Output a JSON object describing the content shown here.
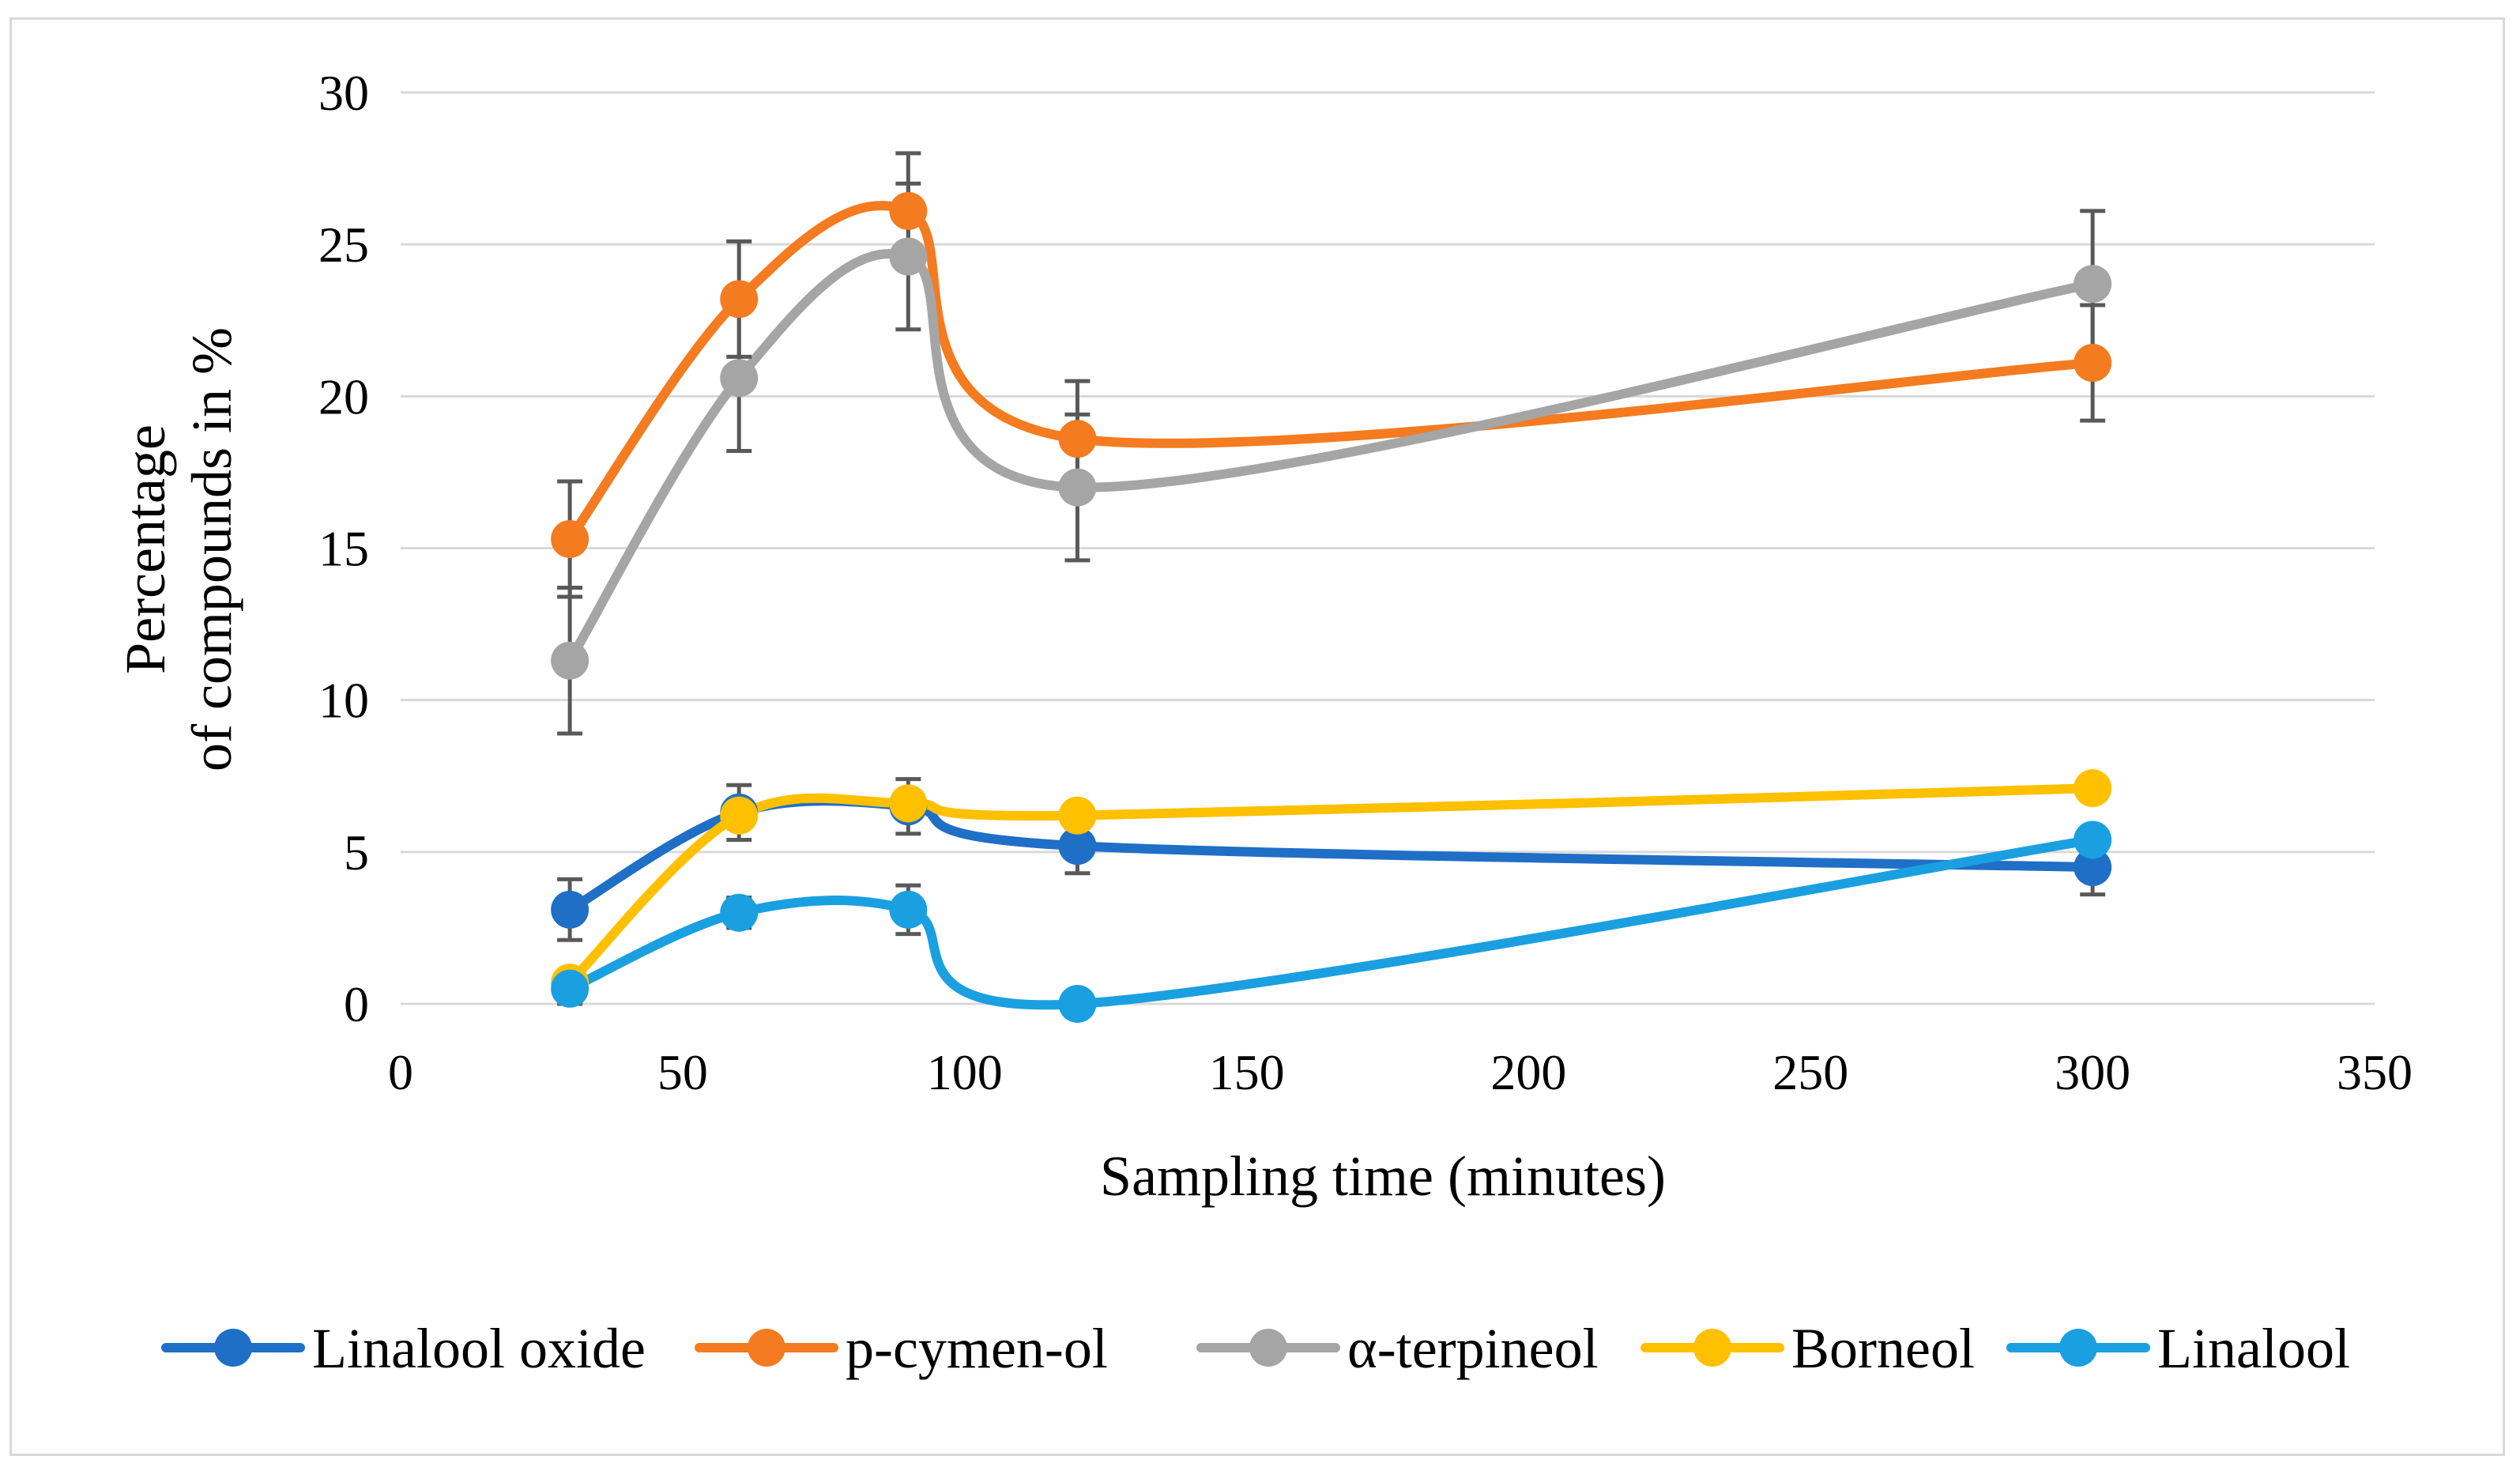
{
  "chart_data": {
    "type": "line",
    "title": "",
    "xlabel": "Sampling time (minutes)",
    "ylabel_lines": [
      "Percentage",
      "of compounds in %"
    ],
    "xlim": [
      0,
      350
    ],
    "ylim": [
      0,
      30
    ],
    "x_ticks": [
      0,
      50,
      100,
      150,
      200,
      250,
      300,
      350
    ],
    "y_ticks": [
      0,
      5,
      10,
      15,
      20,
      25,
      30
    ],
    "x_tick_labels": [
      "0",
      "50",
      "100",
      "150",
      "200",
      "250",
      "300",
      "350"
    ],
    "y_tick_labels": [
      "0",
      "5",
      "10",
      "15",
      "20",
      "25",
      "30"
    ],
    "grid": "horizontal",
    "legend_position": "bottom",
    "x": [
      30,
      60,
      90,
      120,
      300
    ],
    "series": [
      {
        "name": "Linalool oxide",
        "color": "#1f6fc6",
        "values": [
          3.1,
          6.3,
          6.5,
          5.2,
          4.5
        ],
        "errors": [
          1.0,
          0.9,
          0.9,
          0.9,
          0.9
        ]
      },
      {
        "name": "p-cymen-ol",
        "color": "#f47b20",
        "values": [
          15.3,
          23.2,
          26.1,
          18.6,
          21.1
        ],
        "errors": [
          1.9,
          1.9,
          1.9,
          1.9,
          1.9
        ]
      },
      {
        "name": "α-terpineol",
        "color": "#a5a5a5",
        "values": [
          11.3,
          20.6,
          24.6,
          17.0,
          23.7
        ],
        "errors": [
          2.4,
          2.4,
          2.4,
          2.4,
          2.4
        ]
      },
      {
        "name": "Borneol",
        "color": "#ffc000",
        "values": [
          0.7,
          6.2,
          6.6,
          6.2,
          7.1
        ],
        "errors": [
          0,
          0,
          0,
          0,
          0
        ]
      },
      {
        "name": "Linalool",
        "color": "#1aa0e0",
        "values": [
          0.5,
          3.0,
          3.1,
          0.0,
          5.4
        ],
        "errors": [
          0.5,
          0.5,
          0.8,
          0,
          0
        ]
      }
    ]
  }
}
